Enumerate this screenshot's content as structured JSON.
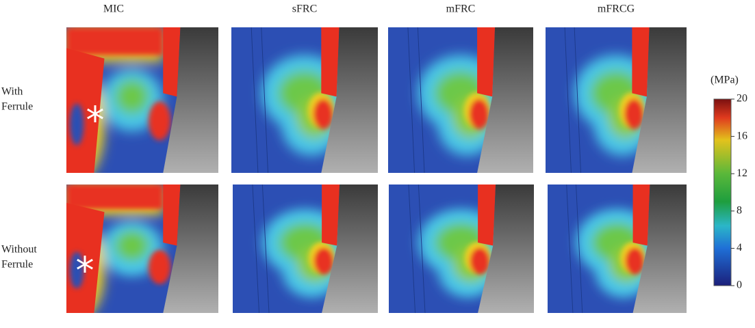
{
  "columns": [
    "MIC",
    "sFRC",
    "mFRC",
    "mFRCG"
  ],
  "rows": [
    {
      "label": [
        "With",
        "Ferrule"
      ],
      "marker": "*"
    },
    {
      "label": [
        "Without",
        "Ferrule"
      ],
      "marker": "*"
    }
  ],
  "colorbar": {
    "unit": "(MPa)",
    "ticks": [
      0,
      4,
      8,
      12,
      16,
      20
    ]
  }
}
